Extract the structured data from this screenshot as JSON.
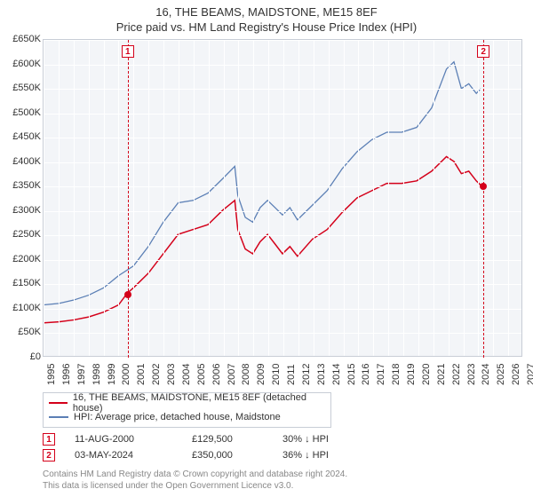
{
  "title_line1": "16, THE BEAMS, MAIDSTONE, ME15 8EF",
  "title_line2": "Price paid vs. HM Land Registry's House Price Index (HPI)",
  "chart": {
    "background_color": "#f3f5f8",
    "grid_color": "#ffffff",
    "border_color": "#c8cdd6",
    "x_min": 1995,
    "x_max": 2027,
    "y_min": 0,
    "y_max": 650000,
    "y_ticks": [
      0,
      50000,
      100000,
      150000,
      200000,
      250000,
      300000,
      350000,
      400000,
      450000,
      500000,
      550000,
      600000,
      650000
    ],
    "y_tick_labels": [
      "£0",
      "£50K",
      "£100K",
      "£150K",
      "£200K",
      "£250K",
      "£300K",
      "£350K",
      "£400K",
      "£450K",
      "£500K",
      "£550K",
      "£600K",
      "£650K"
    ],
    "x_ticks": [
      1995,
      1996,
      1997,
      1998,
      1999,
      2000,
      2001,
      2002,
      2003,
      2004,
      2005,
      2006,
      2007,
      2008,
      2009,
      2010,
      2011,
      2012,
      2013,
      2014,
      2015,
      2016,
      2017,
      2018,
      2019,
      2020,
      2021,
      2022,
      2023,
      2024,
      2025,
      2026,
      2027
    ],
    "label_fontsize": 11,
    "series_property": {
      "color": "#d4001a",
      "line_width": 1.5,
      "data": [
        [
          1995,
          68000
        ],
        [
          1996,
          70000
        ],
        [
          1997,
          74000
        ],
        [
          1998,
          80000
        ],
        [
          1999,
          90000
        ],
        [
          2000,
          105000
        ],
        [
          2000.6,
          129500
        ],
        [
          2001,
          140000
        ],
        [
          2002,
          170000
        ],
        [
          2003,
          210000
        ],
        [
          2004,
          250000
        ],
        [
          2005,
          260000
        ],
        [
          2006,
          270000
        ],
        [
          2007,
          300000
        ],
        [
          2007.8,
          320000
        ],
        [
          2008,
          260000
        ],
        [
          2008.5,
          220000
        ],
        [
          2009,
          210000
        ],
        [
          2009.5,
          235000
        ],
        [
          2010,
          250000
        ],
        [
          2010.5,
          230000
        ],
        [
          2011,
          210000
        ],
        [
          2011.5,
          225000
        ],
        [
          2012,
          205000
        ],
        [
          2013,
          240000
        ],
        [
          2014,
          260000
        ],
        [
          2015,
          295000
        ],
        [
          2016,
          325000
        ],
        [
          2017,
          340000
        ],
        [
          2018,
          355000
        ],
        [
          2019,
          355000
        ],
        [
          2020,
          360000
        ],
        [
          2021,
          380000
        ],
        [
          2022,
          410000
        ],
        [
          2022.5,
          400000
        ],
        [
          2023,
          375000
        ],
        [
          2023.5,
          380000
        ],
        [
          2024,
          360000
        ],
        [
          2024.34,
          350000
        ]
      ]
    },
    "series_hpi": {
      "color": "#5b7fb5",
      "line_width": 1.3,
      "data": [
        [
          1995,
          105000
        ],
        [
          1996,
          108000
        ],
        [
          1997,
          115000
        ],
        [
          1998,
          125000
        ],
        [
          1999,
          140000
        ],
        [
          2000,
          165000
        ],
        [
          2001,
          185000
        ],
        [
          2002,
          225000
        ],
        [
          2003,
          275000
        ],
        [
          2004,
          315000
        ],
        [
          2005,
          320000
        ],
        [
          2006,
          335000
        ],
        [
          2007,
          365000
        ],
        [
          2007.8,
          390000
        ],
        [
          2008,
          330000
        ],
        [
          2008.5,
          285000
        ],
        [
          2009,
          275000
        ],
        [
          2009.5,
          305000
        ],
        [
          2010,
          320000
        ],
        [
          2010.5,
          305000
        ],
        [
          2011,
          290000
        ],
        [
          2011.5,
          305000
        ],
        [
          2012,
          280000
        ],
        [
          2013,
          310000
        ],
        [
          2014,
          340000
        ],
        [
          2015,
          385000
        ],
        [
          2016,
          420000
        ],
        [
          2017,
          445000
        ],
        [
          2018,
          460000
        ],
        [
          2019,
          460000
        ],
        [
          2020,
          470000
        ],
        [
          2021,
          510000
        ],
        [
          2022,
          590000
        ],
        [
          2022.5,
          605000
        ],
        [
          2023,
          550000
        ],
        [
          2023.5,
          560000
        ],
        [
          2024,
          540000
        ],
        [
          2024.3,
          550000
        ]
      ]
    },
    "markers": [
      {
        "n": "1",
        "x": 2000.62,
        "y": 129500,
        "color": "#d4001a"
      },
      {
        "n": "2",
        "x": 2024.34,
        "y": 350000,
        "color": "#d4001a"
      }
    ]
  },
  "legend": {
    "items": [
      {
        "color": "#d4001a",
        "label": "16, THE BEAMS, MAIDSTONE, ME15 8EF (detached house)"
      },
      {
        "color": "#5b7fb5",
        "label": "HPI: Average price, detached house, Maidstone"
      }
    ]
  },
  "events": [
    {
      "n": "1",
      "color": "#d4001a",
      "date": "11-AUG-2000",
      "price": "£129,500",
      "pct": "30% ↓ HPI"
    },
    {
      "n": "2",
      "color": "#d4001a",
      "date": "03-MAY-2024",
      "price": "£350,000",
      "pct": "36% ↓ HPI"
    }
  ],
  "footer_line1": "Contains HM Land Registry data © Crown copyright and database right 2024.",
  "footer_line2": "This data is licensed under the Open Government Licence v3.0."
}
